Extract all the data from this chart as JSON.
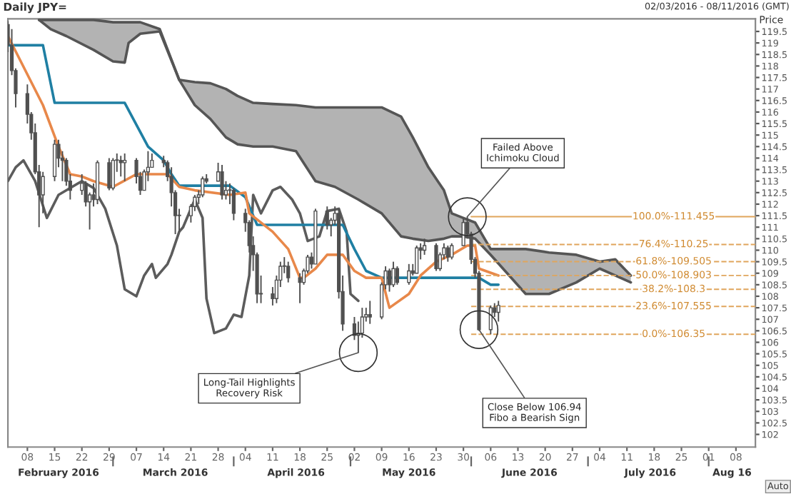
{
  "chart_data": {
    "type": "candlestick",
    "title": "Daily JPY=",
    "subtitle": "02/03/2016 - 08/11/2016 (GMT)",
    "ylabel": "Price",
    "xlim": [
      "2016-02-03",
      "2016-08-13"
    ],
    "x2lim": [
      "2016-02-03",
      "2016-08-13"
    ],
    "ylim": [
      101.45,
      120.05
    ],
    "xticks": [
      {
        "value": "2016-02-08",
        "label": "08"
      },
      {
        "value": "2016-02-15",
        "label": "15"
      },
      {
        "value": "2016-02-22",
        "label": "22"
      },
      {
        "value": "2016-02-29",
        "label": "29"
      },
      {
        "value": "2016-03-07",
        "label": "07"
      },
      {
        "value": "2016-03-14",
        "label": "14"
      },
      {
        "value": "2016-03-21",
        "label": "21"
      },
      {
        "value": "2016-03-28",
        "label": "28"
      },
      {
        "value": "2016-04-04",
        "label": "04"
      },
      {
        "value": "2016-04-11",
        "label": "11"
      },
      {
        "value": "2016-04-18",
        "label": "18"
      },
      {
        "value": "2016-04-25",
        "label": "25"
      },
      {
        "value": "2016-05-02",
        "label": "02"
      },
      {
        "value": "2016-05-09",
        "label": "09"
      },
      {
        "value": "2016-05-16",
        "label": "16"
      },
      {
        "value": "2016-05-23",
        "label": "23"
      },
      {
        "value": "2016-05-30",
        "label": "30"
      },
      {
        "value": "2016-06-06",
        "label": "06"
      },
      {
        "value": "2016-06-13",
        "label": "13"
      },
      {
        "value": "2016-06-20",
        "label": "20"
      },
      {
        "value": "2016-06-27",
        "label": "27"
      },
      {
        "value": "2016-07-04",
        "label": "04"
      },
      {
        "value": "2016-07-11",
        "label": "11"
      },
      {
        "value": "2016-07-18",
        "label": "18"
      },
      {
        "value": "2016-07-25",
        "label": "25"
      },
      {
        "value": "2016-08-01",
        "label": "01"
      },
      {
        "value": "2016-08-08",
        "label": "08"
      }
    ],
    "x2ticks": [
      {
        "value": "2016-02-16",
        "label": "February 2016"
      },
      {
        "value": "2016-03-01",
        "label": null
      },
      {
        "value": "2016-03-17",
        "label": "March 2016"
      },
      {
        "value": "2016-04-01",
        "label": null
      },
      {
        "value": "2016-04-17",
        "label": "April 2016"
      },
      {
        "value": "2016-05-01",
        "label": null
      },
      {
        "value": "2016-05-16",
        "label": "May 2016"
      },
      {
        "value": "2016-06-01",
        "label": null
      },
      {
        "value": "2016-06-16",
        "label": "June 2016"
      },
      {
        "value": "2016-07-01",
        "label": null
      },
      {
        "value": "2016-07-17",
        "label": "July 2016"
      },
      {
        "value": "2016-08-01",
        "label": null
      },
      {
        "value": "2016-08-07",
        "label": "Aug 16"
      }
    ],
    "yticks": [
      102,
      102.5,
      103,
      103.5,
      104,
      104.5,
      105,
      105.5,
      106,
      106.5,
      107,
      107.5,
      108,
      108.5,
      109,
      109.5,
      110,
      110.5,
      111,
      111.5,
      112,
      112.5,
      113,
      113.5,
      114,
      114.5,
      115,
      115.5,
      116,
      116.5,
      117,
      117.5,
      118,
      118.5,
      119,
      119.5
    ],
    "series": [
      {
        "type": "line",
        "color": "#555555",
        "x": [
          "2016-02-11",
          "2016-02-14",
          "2016-02-18",
          "2016-02-25",
          "2016-03-01",
          "2016-03-04",
          "2016-03-05",
          "2016-03-08",
          "2016-03-13",
          "2016-03-18",
          "2016-03-22",
          "2016-03-26",
          "2016-03-30",
          "2016-04-02",
          "2016-04-06",
          "2016-04-11",
          "2016-04-17",
          "2016-04-22",
          "2016-04-27",
          "2016-05-03",
          "2016-05-09",
          "2016-05-14",
          "2016-05-17",
          "2016-05-21",
          "2016-05-25",
          "2016-05-27",
          "2016-05-30",
          "2016-06-02",
          "2016-06-06",
          "2016-06-15",
          "2016-06-21",
          "2016-06-28",
          "2016-07-04",
          "2016-07-08",
          "2016-07-12"
        ],
        "values": [
          120.0,
          120.0,
          120.0,
          120.0,
          119.9,
          119.9,
          119.9,
          119.9,
          119.6,
          117.4,
          117.3,
          117.25,
          117.0,
          116.7,
          116.4,
          116.35,
          116.3,
          116.2,
          116.2,
          116.2,
          116.2,
          115.8,
          114.9,
          113.6,
          112.6,
          111.6,
          111.4,
          111.2,
          110.05,
          110.05,
          109.9,
          109.8,
          109.5,
          109.6,
          108.9
        ],
        "upper": [
          120.0,
          120.0,
          120.0,
          120.0,
          119.9,
          119.9,
          119.9,
          119.9,
          119.6,
          117.4,
          117.3,
          117.25,
          117.0,
          116.7,
          116.4,
          116.35,
          116.3,
          116.2,
          116.2,
          116.2,
          116.2,
          115.8,
          114.9,
          113.6,
          112.6,
          111.6,
          111.4,
          111.2,
          110.05,
          110.05,
          109.9,
          109.8,
          109.5,
          109.6,
          108.9
        ],
        "lower": [
          120.0,
          119.6,
          119.3,
          118.7,
          118.2,
          118.15,
          119.0,
          119.4,
          119.5,
          117.4,
          116.3,
          115.7,
          114.9,
          114.6,
          114.5,
          114.5,
          114.3,
          113.0,
          112.75,
          112.2,
          111.6,
          110.6,
          110.5,
          110.4,
          110.5,
          110.6,
          110.6,
          110.5,
          109.8,
          108.1,
          108.1,
          108.6,
          109.2,
          108.9,
          108.6
        ]
      },
      {
        "type": "line",
        "color": "#555555",
        "x": [
          "2016-02-11",
          "2016-02-14",
          "2016-02-18",
          "2016-02-25",
          "2016-03-01",
          "2016-03-04",
          "2016-03-05",
          "2016-03-08",
          "2016-03-13",
          "2016-03-18",
          "2016-03-22",
          "2016-03-26",
          "2016-03-30",
          "2016-04-02",
          "2016-04-06",
          "2016-04-11",
          "2016-04-17",
          "2016-04-22",
          "2016-04-27",
          "2016-05-03",
          "2016-05-09",
          "2016-05-14",
          "2016-05-17",
          "2016-05-21",
          "2016-05-25",
          "2016-05-27",
          "2016-05-30",
          "2016-06-02",
          "2016-06-06",
          "2016-06-15",
          "2016-06-21",
          "2016-06-28",
          "2016-07-04",
          "2016-07-08",
          "2016-07-12"
        ],
        "values": [
          120.0,
          119.6,
          119.3,
          118.7,
          118.2,
          118.15,
          119.0,
          119.4,
          119.5,
          117.4,
          116.3,
          115.7,
          114.9,
          114.6,
          114.5,
          114.5,
          114.3,
          113.0,
          112.75,
          112.2,
          111.6,
          110.6,
          110.5,
          110.4,
          110.5,
          110.6,
          110.6,
          110.5,
          109.8,
          108.1,
          108.1,
          108.6,
          109.2,
          108.9,
          108.6
        ]
      },
      {
        "type": "line",
        "color": "#5c5c5c",
        "x": [
          "2016-02-03",
          "2016-02-05",
          "2016-02-07",
          "2016-02-10",
          "2016-02-13",
          "2016-02-16",
          "2016-02-22",
          "2016-02-25",
          "2016-02-28",
          "2016-03-02",
          "2016-03-04",
          "2016-03-07",
          "2016-03-09",
          "2016-03-11",
          "2016-03-12",
          "2016-03-15",
          "2016-03-16",
          "2016-03-18",
          "2016-03-19",
          "2016-03-22",
          "2016-03-24",
          "2016-03-25",
          "2016-03-27",
          "2016-03-30",
          "2016-04-01",
          "2016-04-03",
          "2016-04-05",
          "2016-04-06",
          "2016-04-08",
          "2016-04-11",
          "2016-04-13",
          "2016-04-16",
          "2016-04-18",
          "2016-04-20",
          "2016-04-23",
          "2016-04-25",
          "2016-04-28",
          "2016-04-30",
          "2016-05-01",
          "2016-05-03"
        ],
        "values": [
          113.0,
          113.6,
          113.9,
          113.0,
          111.4,
          112.4,
          113.0,
          112.7,
          111.8,
          110.2,
          108.3,
          108.0,
          108.9,
          109.4,
          108.8,
          109.4,
          109.8,
          110.8,
          111.0,
          112.2,
          111.4,
          107.9,
          106.4,
          106.6,
          107.2,
          107.1,
          108.9,
          112.4,
          111.6,
          112.6,
          112.75,
          112.2,
          111.6,
          110.4,
          110.6,
          111.7,
          111.8,
          110.8,
          108.1,
          107.8
        ]
      },
      {
        "type": "line",
        "color": "#1f7fa3",
        "x": [
          "2016-02-03",
          "2016-02-12",
          "2016-02-15",
          "2016-03-04",
          "2016-03-10",
          "2016-03-14",
          "2016-03-16",
          "2016-03-18",
          "2016-03-31",
          "2016-04-04",
          "2016-04-07",
          "2016-04-29",
          "2016-05-02",
          "2016-05-05",
          "2016-05-09",
          "2016-06-03",
          "2016-06-06",
          "2016-06-08"
        ],
        "values": [
          118.9,
          118.9,
          116.4,
          116.4,
          114.5,
          113.9,
          113.3,
          112.8,
          112.8,
          112.3,
          111.1,
          111.1,
          110.05,
          109.1,
          108.8,
          108.8,
          108.5,
          108.5
        ]
      },
      {
        "type": "line",
        "color": "#e8884a",
        "x": [
          "2016-02-03",
          "2016-02-12",
          "2016-02-16",
          "2016-02-19",
          "2016-02-22",
          "2016-02-25",
          "2016-03-01",
          "2016-03-07",
          "2016-03-11",
          "2016-03-15",
          "2016-03-18",
          "2016-03-22",
          "2016-03-31",
          "2016-04-04",
          "2016-04-05",
          "2016-04-11",
          "2016-04-15",
          "2016-04-18",
          "2016-04-19",
          "2016-04-22",
          "2016-04-25",
          "2016-04-29",
          "2016-05-02",
          "2016-05-05",
          "2016-05-09",
          "2016-05-11",
          "2016-05-16",
          "2016-05-19",
          "2016-05-23",
          "2016-05-27",
          "2016-05-31",
          "2016-06-02",
          "2016-06-03",
          "2016-06-08"
        ],
        "values": [
          119.3,
          116.3,
          114.5,
          113.3,
          113.2,
          113.0,
          112.75,
          113.3,
          113.3,
          113.3,
          112.75,
          112.6,
          112.4,
          112.5,
          111.6,
          110.8,
          110.05,
          108.8,
          108.8,
          109.2,
          109.8,
          109.8,
          109.1,
          108.8,
          108.8,
          107.5,
          108.1,
          108.9,
          109.5,
          109.8,
          110.2,
          110.2,
          109.2,
          108.9
        ]
      },
      {
        "type": "line",
        "name": "100.0%-111.455",
        "color": "#e0a55c",
        "line_style": "solid",
        "x": [
          "2016-06-01",
          "2016-08-13"
        ],
        "values": [
          111.455,
          111.455
        ]
      },
      {
        "type": "line",
        "name": "76.4%-110.25",
        "color": "#e0a55c",
        "line_style": "dashed",
        "x": [
          "2016-06-01",
          "2016-08-13"
        ],
        "values": [
          110.25,
          110.25
        ]
      },
      {
        "type": "line",
        "name": "61.8%-109.505",
        "color": "#e0a55c",
        "line_style": "dashed",
        "x": [
          "2016-06-01",
          "2016-08-13"
        ],
        "values": [
          109.505,
          109.505
        ]
      },
      {
        "type": "line",
        "name": "50.0%-108.903",
        "color": "#e0a55c",
        "line_style": "dashed",
        "x": [
          "2016-06-01",
          "2016-08-13"
        ],
        "values": [
          108.903,
          108.903
        ]
      },
      {
        "type": "line",
        "name": "38.2%-108.3",
        "color": "#e0a55c",
        "line_style": "dashed",
        "x": [
          "2016-06-01",
          "2016-08-13"
        ],
        "values": [
          108.3,
          108.3
        ]
      },
      {
        "type": "line",
        "name": "23.6%-107.555",
        "color": "#e0a55c",
        "line_style": "dashed",
        "x": [
          "2016-06-01",
          "2016-08-13"
        ],
        "values": [
          107.555,
          107.555
        ]
      },
      {
        "type": "line",
        "name": "0.0%-106.35",
        "color": "#e0a55c",
        "line_style": "dashed",
        "x": [
          "2016-06-01",
          "2016-08-13"
        ],
        "values": [
          106.35,
          106.35
        ]
      },
      {
        "type": "candlestick",
        "color": "#505050",
        "x": [
          "2016-02-03",
          "2016-02-04",
          "2016-02-05",
          "2016-02-08",
          "2016-02-09",
          "2016-02-10",
          "2016-02-11",
          "2016-02-12",
          "2016-02-15",
          "2016-02-16",
          "2016-02-17",
          "2016-02-18",
          "2016-02-19",
          "2016-02-22",
          "2016-02-23",
          "2016-02-24",
          "2016-02-25",
          "2016-02-26",
          "2016-02-29",
          "2016-03-01",
          "2016-03-02",
          "2016-03-03",
          "2016-03-04",
          "2016-03-07",
          "2016-03-08",
          "2016-03-09",
          "2016-03-10",
          "2016-03-11",
          "2016-03-14",
          "2016-03-15",
          "2016-03-16",
          "2016-03-17",
          "2016-03-18",
          "2016-03-21",
          "2016-03-22",
          "2016-03-23",
          "2016-03-24",
          "2016-03-25",
          "2016-03-28",
          "2016-03-29",
          "2016-03-30",
          "2016-03-31",
          "2016-04-01",
          "2016-04-04",
          "2016-04-05",
          "2016-04-06",
          "2016-04-07",
          "2016-04-08",
          "2016-04-11",
          "2016-04-12",
          "2016-04-13",
          "2016-04-14",
          "2016-04-15",
          "2016-04-18",
          "2016-04-19",
          "2016-04-20",
          "2016-04-21",
          "2016-04-22",
          "2016-04-25",
          "2016-04-26",
          "2016-04-27",
          "2016-04-28",
          "2016-04-29",
          "2016-05-02",
          "2016-05-03",
          "2016-05-04",
          "2016-05-05",
          "2016-05-06",
          "2016-05-09",
          "2016-05-10",
          "2016-05-11",
          "2016-05-12",
          "2016-05-13",
          "2016-05-16",
          "2016-05-17",
          "2016-05-18",
          "2016-05-19",
          "2016-05-20",
          "2016-05-23",
          "2016-05-24",
          "2016-05-25",
          "2016-05-26",
          "2016-05-27",
          "2016-05-30",
          "2016-05-31",
          "2016-06-01",
          "2016-06-02",
          "2016-06-03",
          "2016-06-06",
          "2016-06-07",
          "2016-06-08"
        ],
        "ohlc": [
          [
            119.8,
            119.95,
            118.6,
            118.9
          ],
          [
            118.9,
            119.6,
            117.6,
            117.8
          ],
          [
            117.8,
            117.9,
            116.2,
            116.8
          ],
          [
            116.8,
            117.2,
            115.5,
            115.9
          ],
          [
            115.9,
            116.0,
            114.8,
            115.1
          ],
          [
            115.1,
            115.5,
            113.3,
            113.4
          ],
          [
            113.4,
            113.7,
            111.0,
            112.4
          ],
          [
            112.4,
            113.4,
            111.6,
            113.2
          ],
          [
            113.2,
            114.8,
            113.0,
            114.6
          ],
          [
            114.6,
            114.8,
            113.6,
            114.0
          ],
          [
            114.0,
            114.3,
            113.0,
            113.9
          ],
          [
            113.9,
            114.0,
            112.8,
            113.0
          ],
          [
            113.0,
            113.3,
            112.2,
            112.6
          ],
          [
            112.6,
            113.3,
            112.4,
            112.9
          ],
          [
            112.9,
            113.0,
            111.9,
            112.1
          ],
          [
            112.1,
            112.5,
            110.9,
            112.4
          ],
          [
            112.4,
            112.9,
            111.9,
            112.2
          ],
          [
            112.2,
            113.9,
            112.0,
            113.8
          ],
          [
            113.8,
            114.0,
            112.6,
            112.7
          ],
          [
            112.7,
            114.0,
            112.6,
            113.9
          ],
          [
            113.9,
            114.2,
            113.4,
            113.9
          ],
          [
            113.9,
            114.1,
            113.2,
            113.8
          ],
          [
            113.8,
            114.2,
            113.0,
            113.9
          ],
          [
            113.9,
            114.0,
            112.9,
            113.2
          ],
          [
            113.2,
            113.4,
            112.4,
            112.6
          ],
          [
            112.6,
            113.5,
            112.6,
            113.4
          ],
          [
            113.4,
            114.3,
            113.0,
            113.6
          ],
          [
            113.6,
            114.2,
            113.6,
            113.9
          ],
          [
            113.9,
            114.1,
            113.6,
            113.8
          ],
          [
            113.8,
            113.9,
            113.0,
            113.2
          ],
          [
            113.2,
            113.6,
            111.9,
            112.5
          ],
          [
            112.5,
            112.6,
            110.7,
            111.5
          ],
          [
            111.5,
            111.8,
            110.8,
            111.5
          ],
          [
            111.5,
            112.0,
            111.2,
            111.9
          ],
          [
            111.9,
            112.4,
            111.7,
            112.3
          ],
          [
            112.3,
            112.6,
            112.0,
            112.4
          ],
          [
            112.4,
            113.2,
            112.3,
            113.1
          ],
          [
            113.1,
            113.3,
            112.9,
            113.0
          ],
          [
            113.0,
            113.8,
            113.0,
            113.4
          ],
          [
            113.4,
            113.7,
            112.2,
            112.4
          ],
          [
            112.4,
            113.0,
            112.2,
            112.6
          ],
          [
            112.6,
            112.9,
            112.0,
            112.6
          ],
          [
            112.6,
            112.7,
            111.3,
            111.6
          ],
          [
            111.6,
            111.8,
            110.8,
            111.2
          ],
          [
            111.2,
            111.3,
            109.9,
            110.2
          ],
          [
            110.2,
            110.6,
            109.1,
            109.8
          ],
          [
            109.8,
            109.9,
            107.7,
            108.1
          ],
          [
            108.1,
            108.9,
            107.7,
            108.1
          ],
          [
            108.1,
            108.4,
            107.6,
            107.9
          ],
          [
            107.9,
            108.9,
            107.7,
            108.7
          ],
          [
            108.7,
            109.5,
            108.4,
            109.3
          ],
          [
            109.3,
            109.7,
            109.0,
            109.3
          ],
          [
            109.3,
            109.5,
            108.6,
            108.8
          ],
          [
            108.8,
            109.0,
            107.7,
            108.6
          ],
          [
            108.6,
            109.2,
            108.5,
            109.1
          ],
          [
            109.1,
            109.8,
            109.0,
            109.7
          ],
          [
            109.7,
            109.9,
            109.2,
            109.4
          ],
          [
            109.4,
            111.8,
            109.4,
            111.7
          ],
          [
            111.7,
            111.9,
            110.9,
            111.1
          ],
          [
            111.1,
            111.4,
            110.6,
            111.3
          ],
          [
            111.3,
            111.9,
            111.1,
            111.6
          ],
          [
            111.6,
            111.8,
            107.9,
            108.2
          ],
          [
            108.2,
            108.9,
            106.5,
            106.8
          ],
          [
            106.8,
            107.1,
            106.1,
            106.3
          ],
          [
            106.3,
            106.9,
            105.55,
            106.4
          ],
          [
            106.4,
            107.5,
            106.2,
            107.1
          ],
          [
            107.1,
            107.5,
            106.9,
            107.2
          ],
          [
            107.2,
            107.8,
            106.8,
            107.1
          ],
          [
            107.1,
            108.6,
            107.0,
            108.5
          ],
          [
            108.5,
            109.3,
            108.3,
            109.1
          ],
          [
            109.1,
            109.2,
            108.2,
            108.5
          ],
          [
            108.5,
            109.5,
            108.4,
            109.2
          ],
          [
            109.2,
            109.3,
            108.5,
            108.6
          ],
          [
            108.6,
            109.4,
            108.5,
            109.1
          ],
          [
            109.1,
            109.4,
            108.9,
            109.0
          ],
          [
            109.0,
            110.2,
            109.0,
            110.1
          ],
          [
            110.1,
            110.3,
            109.6,
            110.0
          ],
          [
            110.0,
            110.5,
            109.8,
            110.2
          ],
          [
            110.2,
            110.3,
            109.1,
            109.2
          ],
          [
            109.2,
            109.9,
            109.1,
            109.8
          ],
          [
            109.8,
            110.3,
            109.6,
            110.1
          ],
          [
            110.1,
            110.2,
            109.5,
            109.7
          ],
          [
            109.7,
            110.3,
            109.6,
            110.2
          ],
          [
            110.2,
            111.4,
            110.2,
            111.2
          ],
          [
            111.2,
            111.455,
            110.5,
            110.7
          ],
          [
            110.7,
            110.8,
            109.4,
            109.6
          ],
          [
            109.6,
            109.7,
            108.8,
            109.0
          ],
          [
            109.0,
            109.1,
            106.5,
            106.55
          ],
          [
            106.55,
            107.6,
            106.35,
            107.5
          ],
          [
            107.5,
            107.7,
            107.1,
            107.3
          ],
          [
            107.3,
            107.8,
            106.9,
            107.6
          ]
        ]
      }
    ],
    "annotations": [
      {
        "text": "Failed Above\nIchimoku Cloud",
        "x": "2016-05-31",
        "y": 111.455
      },
      {
        "text": "Long-Tail Highlights\nRecovery Risk",
        "x": "2016-05-03",
        "y": 105.55
      },
      {
        "text": "Close Below 106.94\nFibo a Bearish Sign",
        "x": "2016-06-03",
        "y": 106.55
      },
      "Auto"
    ]
  }
}
